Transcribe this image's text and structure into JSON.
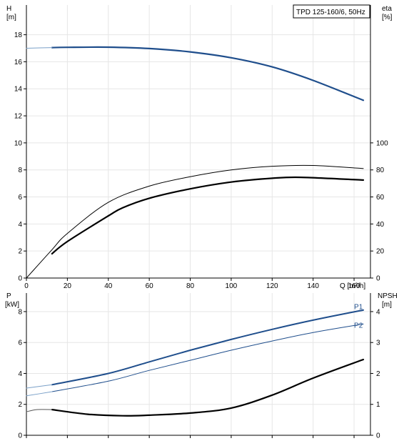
{
  "chart_data": [
    {
      "type": "line",
      "panel": "head-efficiency",
      "title": "TPD 125-160/6, 50Hz",
      "xlabel": "Q [m³/h]",
      "xlim": [
        0,
        168
      ],
      "xticks": [
        0,
        20,
        40,
        60,
        80,
        100,
        120,
        140,
        160
      ],
      "ylabel_left": [
        "H",
        "[m]"
      ],
      "ylim_left": [
        0,
        20.2
      ],
      "yticks_left": [
        0,
        2,
        4,
        6,
        8,
        10,
        12,
        14,
        16,
        18
      ],
      "ylabel_right": [
        "eta",
        "[%]"
      ],
      "ylim_right": [
        0,
        202
      ],
      "yticks_right": [
        0,
        20,
        40,
        60,
        80,
        100
      ],
      "grid": true,
      "series": [
        {
          "axis": "left",
          "color": "#1f4e8c",
          "width": 2.2,
          "x": [
            12.5,
            20,
            40,
            60,
            80,
            100,
            120,
            140,
            164.5
          ],
          "y": [
            17.05,
            17.07,
            17.08,
            16.98,
            16.73,
            16.3,
            15.62,
            14.62,
            13.15
          ]
        },
        {
          "axis": "left",
          "color": "#7aa0c8",
          "width": 1.0,
          "x": [
            0,
            12.5
          ],
          "y": [
            17.0,
            17.05
          ]
        },
        {
          "axis": "right",
          "color": "#000000",
          "width": 1.0,
          "x": [
            0,
            12.5,
            20,
            40,
            60,
            80,
            100,
            120,
            140,
            164.5
          ],
          "y": [
            0,
            21,
            33,
            56,
            68,
            75,
            80,
            82.7,
            83.3,
            81
          ]
        },
        {
          "axis": "right",
          "color": "#000000",
          "width": 2.2,
          "x": [
            12.5,
            20,
            40,
            47,
            60,
            80,
            100,
            120,
            134,
            164.5
          ],
          "y": [
            18,
            27,
            46,
            52,
            59,
            66,
            71,
            73.8,
            74.5,
            72.5
          ]
        }
      ]
    },
    {
      "type": "line",
      "panel": "power-npsh",
      "xlim": [
        0,
        168
      ],
      "ylabel_left": [
        "P",
        "[kW]"
      ],
      "ylim_left": [
        0,
        9.2
      ],
      "yticks_left": [
        0,
        2,
        4,
        6,
        8
      ],
      "ylabel_right": [
        "NPSH",
        "[m]"
      ],
      "ylim_right": [
        0,
        4.6
      ],
      "yticks_right": [
        0,
        1,
        2,
        3,
        4
      ],
      "grid": true,
      "series": [
        {
          "name": "P1",
          "axis": "left",
          "color": "#1f4e8c",
          "width": 2.0,
          "label_at": [
            160,
            8.15
          ],
          "x": [
            12.5,
            40,
            60,
            80,
            100,
            120,
            140,
            164.5
          ],
          "y": [
            3.27,
            4.0,
            4.75,
            5.5,
            6.2,
            6.85,
            7.45,
            8.1
          ]
        },
        {
          "name": "P2",
          "axis": "left",
          "color": "#1f4e8c",
          "width": 1.0,
          "label_at": [
            160,
            6.95
          ],
          "x": [
            12.5,
            40,
            60,
            80,
            100,
            120,
            140,
            164.5
          ],
          "y": [
            2.82,
            3.5,
            4.2,
            4.85,
            5.5,
            6.1,
            6.65,
            7.2
          ]
        },
        {
          "axis": "left",
          "color": "#7aa0c8",
          "width": 1.0,
          "x": [
            0,
            12.5
          ],
          "y": [
            3.05,
            3.27
          ]
        },
        {
          "axis": "left",
          "color": "#7aa0c8",
          "width": 1.0,
          "x": [
            0,
            12.5
          ],
          "y": [
            2.55,
            2.82
          ]
        },
        {
          "axis": "right",
          "color": "#000000",
          "width": 2.2,
          "x": [
            12.5,
            30,
            47,
            60,
            80,
            100,
            120,
            140,
            164.5
          ],
          "y": [
            0.83,
            0.68,
            0.63,
            0.65,
            0.72,
            0.88,
            1.3,
            1.85,
            2.45
          ]
        },
        {
          "axis": "right",
          "color": "#555555",
          "width": 1.0,
          "x": [
            0,
            5,
            12.5
          ],
          "y": [
            0.76,
            0.83,
            0.83
          ]
        }
      ]
    }
  ]
}
